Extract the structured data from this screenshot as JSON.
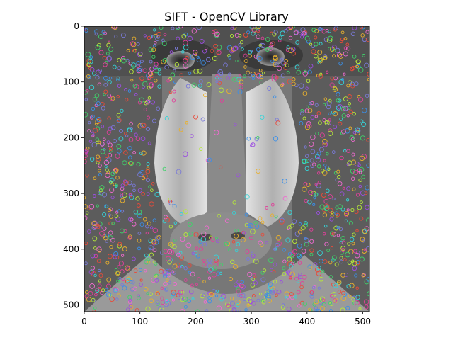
{
  "chart_data": {
    "type": "image",
    "title": "SIFT - OpenCV Library",
    "xlabel": "",
    "ylabel": "",
    "image_size": [
      512,
      512
    ],
    "xlim": [
      0,
      512
    ],
    "ylim": [
      512,
      0
    ],
    "x_ticks": [
      0,
      100,
      200,
      300,
      400,
      500
    ],
    "y_ticks": [
      0,
      100,
      200,
      300,
      400,
      500
    ],
    "grid": false,
    "legend": "none",
    "image_content": "grayscale mandrill face with colored SIFT keypoint circles",
    "keypoint_colors": [
      "#e0409a",
      "#3fd16a",
      "#3a8fe8",
      "#e8b02e",
      "#9b4fe0",
      "#35d4d8",
      "#e84b3a",
      "#b7e83a",
      "#f06bd0",
      "#7a7ad8"
    ]
  }
}
